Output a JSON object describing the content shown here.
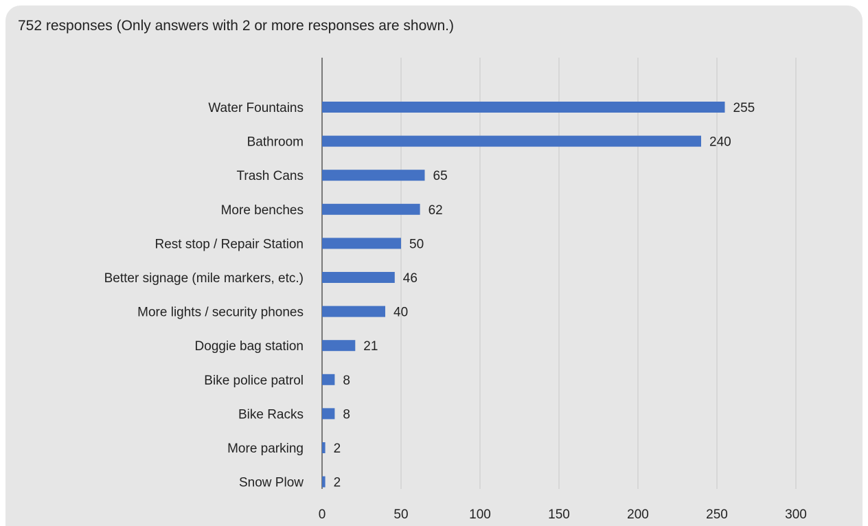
{
  "chart_data": {
    "type": "bar",
    "orientation": "horizontal",
    "title": "752 responses (Only answers with 2 or more responses are shown.)",
    "xlabel": "",
    "ylabel": "",
    "categories": [
      "Water Fountains",
      "Bathroom",
      "Trash Cans",
      "More benches",
      "Rest stop / Repair Station",
      "Better signage (mile markers, etc.)",
      "More lights / security phones",
      "Doggie bag station",
      "Bike police patrol",
      "Bike Racks",
      "More parking",
      "Snow Plow"
    ],
    "values": [
      255,
      240,
      65,
      62,
      50,
      46,
      40,
      21,
      8,
      8,
      2,
      2
    ],
    "xlim": [
      0,
      300
    ],
    "xticks": [
      0,
      50,
      100,
      150,
      200,
      250,
      300
    ],
    "grid": true,
    "legend": "none",
    "colors": {
      "bar": "#4472c4",
      "grid": "#c8c8c8",
      "axis": "#555555",
      "background": "#e6e6e6"
    }
  }
}
